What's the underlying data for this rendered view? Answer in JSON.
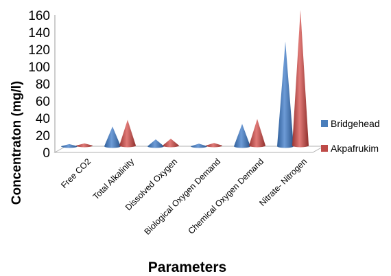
{
  "chart_data": {
    "type": "bar",
    "style": "3d-cone",
    "title": "",
    "xlabel": "Parameters",
    "ylabel": "Concentraton (mg/l)",
    "ylim": [
      0,
      160
    ],
    "yticks": [
      "0",
      "20",
      "40",
      "60",
      "80",
      "100",
      "120",
      "140",
      "160"
    ],
    "grid": false,
    "legend_position": "right",
    "categories": [
      "Free CO2",
      "Total Alkalinity",
      "Dissolved Oxygen",
      "Biological Oxygen Demand",
      "Chemical Oxygen Demand",
      "Nitrate- Nitrogen"
    ],
    "series": [
      {
        "name": "Bridgehead",
        "color": "#4a7ebb",
        "values": [
          2.5,
          23,
          8,
          3,
          26,
          122
        ]
      },
      {
        "name": "Akpafrukim",
        "color": "#be4b48",
        "values": [
          2.5,
          30,
          8,
          3,
          31,
          158
        ]
      }
    ]
  }
}
